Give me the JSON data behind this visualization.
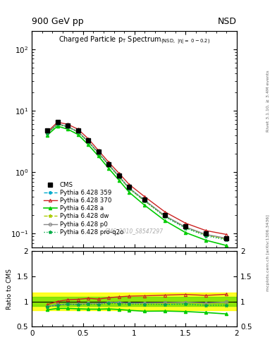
{
  "title_top_left": "900 GeV pp",
  "title_top_right": "NSD",
  "plot_title": "Charged Particle p_{T} Spectrum",
  "plot_subtitle": "(NSD, |#eta| =  0 - 0.2)",
  "right_label_top": "Rivet 3.1.10, ≥ 3.4M events",
  "right_label_bottom": "mcplots.cern.ch [arXiv:1306.3436]",
  "watermark": "CMS_2010_S8547297",
  "xlim": [
    0,
    2
  ],
  "ylim_main": [
    0.06,
    200
  ],
  "ylim_ratio": [
    0.5,
    2.0
  ],
  "pt_x": [
    0.15,
    0.25,
    0.35,
    0.45,
    0.55,
    0.65,
    0.75,
    0.85,
    0.95,
    1.1,
    1.3,
    1.5,
    1.7,
    1.9
  ],
  "cms_y": [
    4.8,
    6.5,
    5.8,
    4.8,
    3.3,
    2.15,
    1.35,
    0.88,
    0.57,
    0.36,
    0.2,
    0.13,
    0.1,
    0.085
  ],
  "py359_y": [
    4.3,
    6.1,
    5.5,
    4.5,
    3.15,
    2.05,
    1.32,
    0.86,
    0.55,
    0.35,
    0.19,
    0.125,
    0.095,
    0.082
  ],
  "py370_y": [
    4.5,
    6.5,
    6.0,
    5.0,
    3.5,
    2.25,
    1.45,
    0.96,
    0.63,
    0.4,
    0.225,
    0.148,
    0.112,
    0.097
  ],
  "pya_y": [
    4.0,
    5.6,
    5.0,
    4.1,
    2.8,
    1.82,
    1.15,
    0.74,
    0.47,
    0.29,
    0.162,
    0.104,
    0.078,
    0.064
  ],
  "pydw_y": [
    4.3,
    6.0,
    5.5,
    4.5,
    3.12,
    2.03,
    1.3,
    0.84,
    0.54,
    0.34,
    0.192,
    0.126,
    0.095,
    0.082
  ],
  "pyp0_y": [
    4.3,
    6.1,
    5.5,
    4.55,
    3.17,
    2.06,
    1.32,
    0.86,
    0.55,
    0.35,
    0.195,
    0.128,
    0.097,
    0.084
  ],
  "pyproq2o_y": [
    4.3,
    6.0,
    5.5,
    4.5,
    3.12,
    2.03,
    1.3,
    0.84,
    0.54,
    0.34,
    0.188,
    0.123,
    0.092,
    0.079
  ],
  "ratio_359": [
    0.896,
    0.938,
    0.948,
    0.938,
    0.955,
    0.953,
    0.978,
    0.977,
    0.965,
    0.972,
    0.95,
    0.962,
    0.95,
    0.965
  ],
  "ratio_370": [
    0.938,
    1.0,
    1.034,
    1.042,
    1.061,
    1.047,
    1.074,
    1.091,
    1.105,
    1.111,
    1.125,
    1.138,
    1.12,
    1.141
  ],
  "ratio_a": [
    0.833,
    0.862,
    0.862,
    0.854,
    0.848,
    0.847,
    0.852,
    0.841,
    0.825,
    0.806,
    0.81,
    0.8,
    0.78,
    0.753
  ],
  "ratio_dw": [
    0.896,
    0.923,
    0.948,
    0.938,
    0.945,
    0.944,
    0.963,
    0.955,
    0.947,
    0.944,
    0.96,
    0.969,
    0.95,
    0.965
  ],
  "ratio_p0": [
    0.896,
    0.938,
    0.948,
    0.948,
    0.961,
    0.958,
    0.978,
    0.977,
    0.965,
    0.972,
    0.975,
    0.985,
    0.97,
    0.988
  ],
  "ratio_proq2o": [
    0.896,
    0.923,
    0.948,
    0.938,
    0.945,
    0.944,
    0.963,
    0.955,
    0.947,
    0.944,
    0.94,
    0.946,
    0.92,
    0.929
  ],
  "band_yellow_lo": 0.83,
  "band_yellow_hi": 1.17,
  "band_green_lo": 0.91,
  "band_green_hi": 1.09,
  "colors": {
    "cms": "#000000",
    "py359": "#00AACC",
    "py370": "#CC2222",
    "pya": "#00CC00",
    "pydw": "#AACC00",
    "pyp0": "#888888",
    "pyproq2o": "#00AA44"
  }
}
